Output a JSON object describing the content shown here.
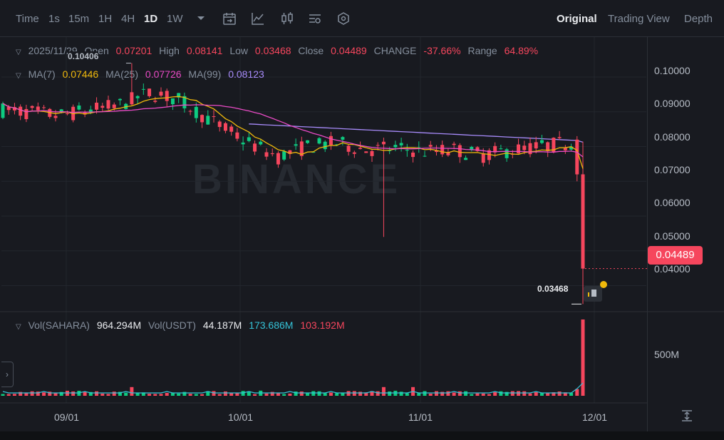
{
  "toolbar": {
    "intervals": [
      "Time",
      "1s",
      "15m",
      "1H",
      "4H",
      "1D",
      "1W"
    ],
    "active_interval": "1D",
    "views": [
      "Original",
      "Trading View",
      "Depth"
    ],
    "active_view": "Original"
  },
  "info": {
    "date": "2025/11/29",
    "open_label": "Open",
    "open": "0.07201",
    "high_label": "High",
    "high": "0.08141",
    "low_label": "Low",
    "low": "0.03468",
    "close_label": "Close",
    "close": "0.04489",
    "change_label": "CHANGE",
    "change": "-37.66%",
    "range_label": "Range",
    "range": "64.89%"
  },
  "ma": {
    "ma7_label": "MA(7)",
    "ma7": "0.07446",
    "ma25_label": "MA(25)",
    "ma25": "0.07726",
    "ma99_label": "MA(99)",
    "ma99": "0.08123"
  },
  "vol": {
    "sahara_label": "Vol(SAHARA)",
    "sahara": "964.294M",
    "usdt_label": "Vol(USDT)",
    "usdt": "44.187M",
    "ma1": "173.686M",
    "ma2": "103.192M"
  },
  "watermark": "BINANCE",
  "current_price": "0.04489",
  "high_marker": "0.10406",
  "low_marker": "0.03468",
  "colors": {
    "up": "#0ecb81",
    "down": "#f6465d",
    "ma7": "#f0b90b",
    "ma25": "#e94bc5",
    "ma99": "#a78bfa",
    "bg": "#181a20"
  },
  "chart_data": {
    "type": "candlestick",
    "x_ticks": [
      "09/01",
      "10/01",
      "11/01",
      "12/01"
    ],
    "y_ticks": [
      "0.10000",
      "0.09000",
      "0.08000",
      "0.07000",
      "0.06000",
      "0.05000",
      "0.04000"
    ],
    "ylim": [
      0.0325,
      0.1115
    ],
    "vol_ticks": [
      "500M"
    ],
    "series": [
      {
        "name": "MA(7)",
        "value": 0.07446
      },
      {
        "name": "MA(25)",
        "value": 0.07726
      },
      {
        "name": "MA(99)",
        "value": 0.08123
      }
    ],
    "last_candle": {
      "date": "2025/11/29",
      "open": 0.07201,
      "high": 0.08141,
      "low": 0.03468,
      "close": 0.04489,
      "volume": "964.294M"
    }
  }
}
